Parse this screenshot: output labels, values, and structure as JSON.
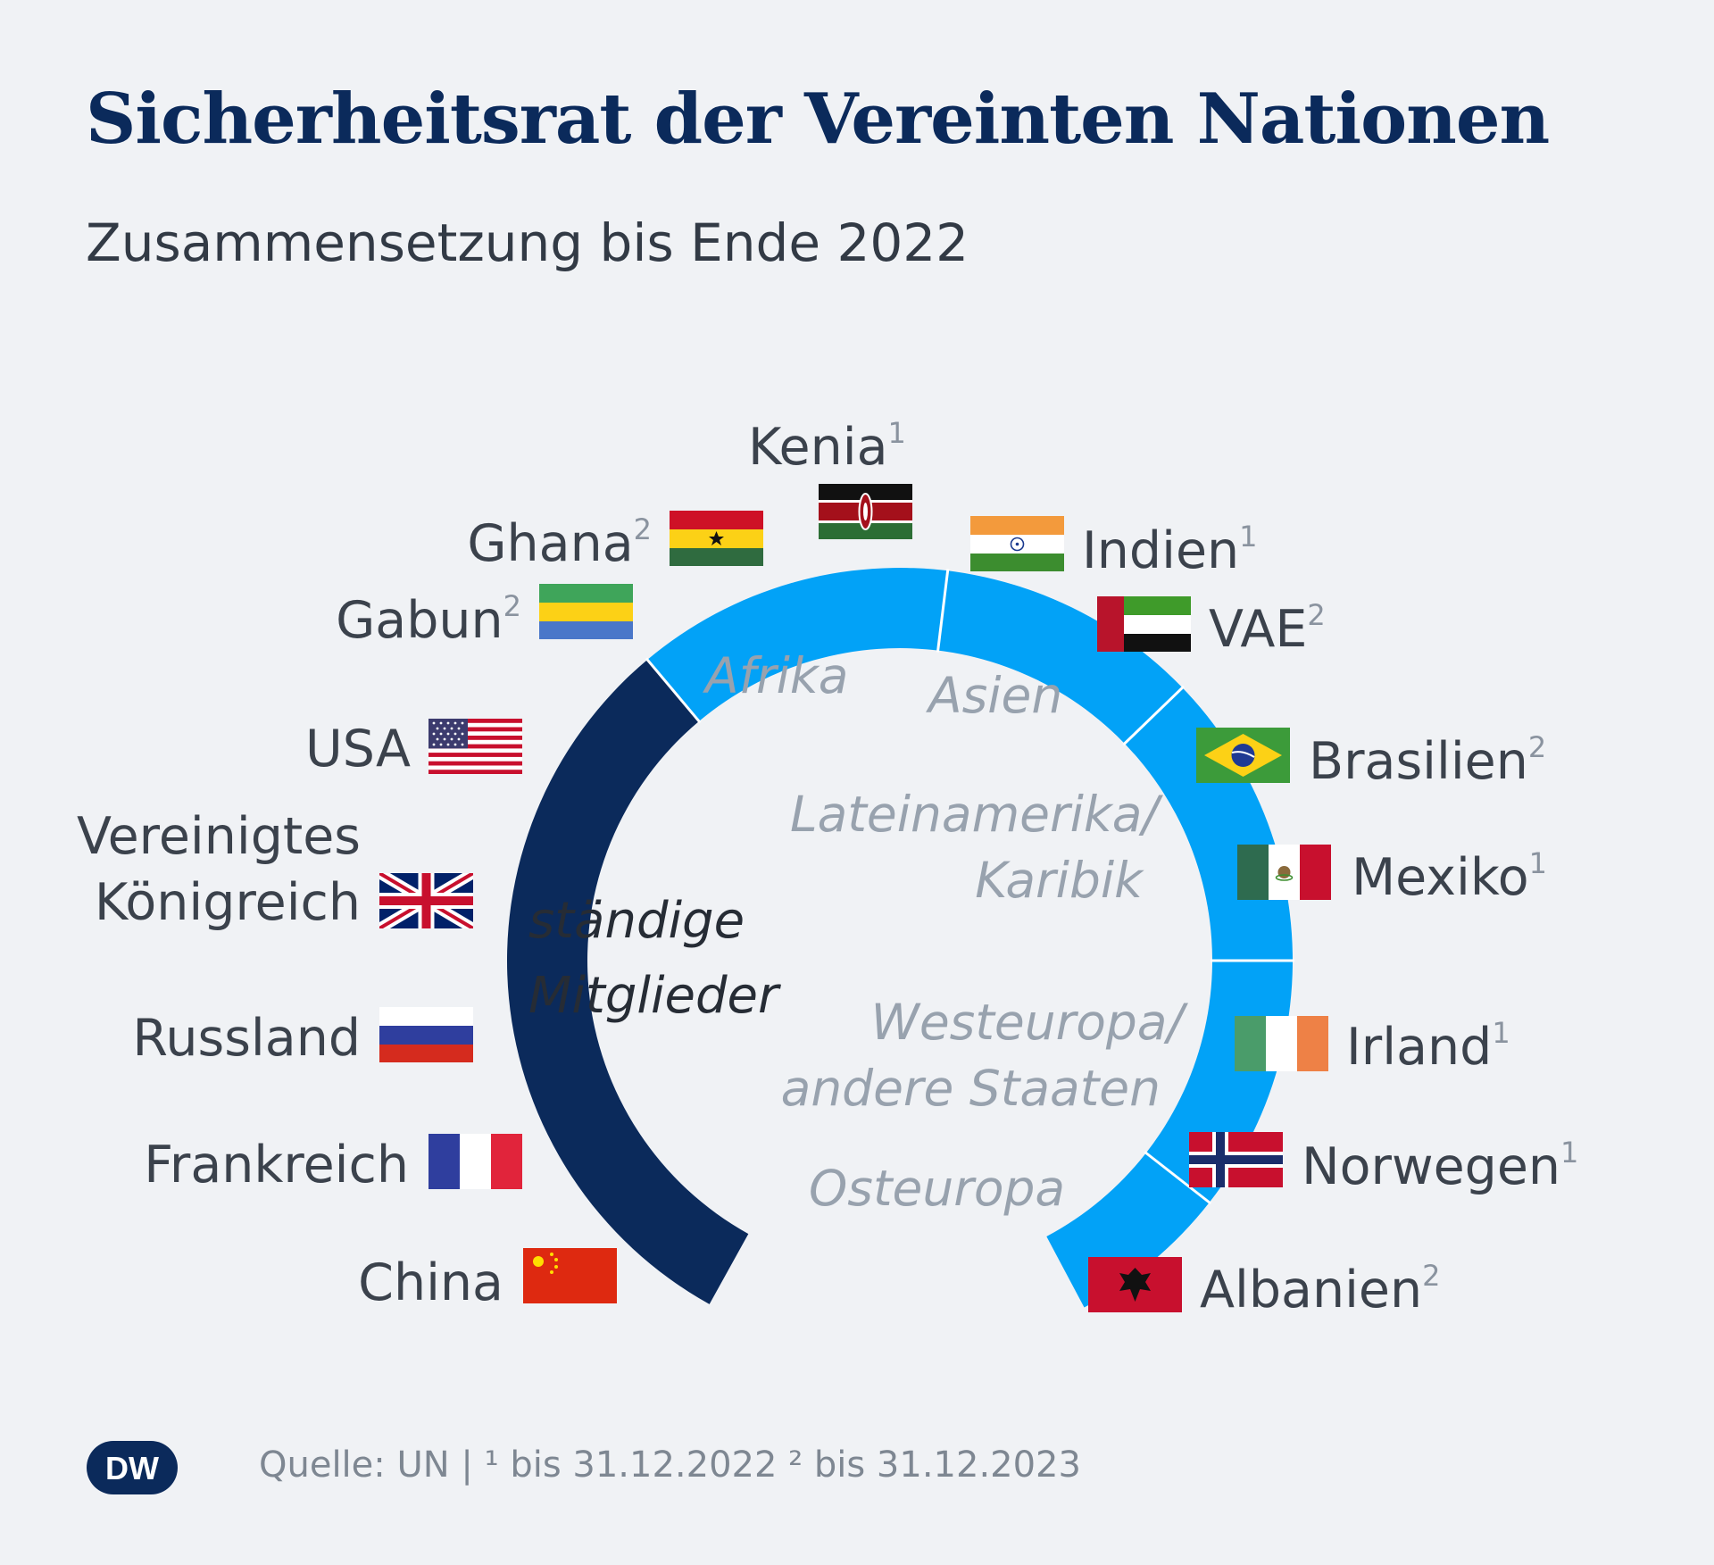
{
  "title": "Sicherheitsrat der Vereinten Nationen",
  "subtitle": "Zusammensetzung bis Ende 2022",
  "colors": {
    "permanent": "#0b2a5b",
    "elected": "#02a2f7",
    "title": "#0b2a5b"
  },
  "permanent_group_label": [
    "ständige",
    "Mitglieder"
  ],
  "regions": {
    "afrika": "Afrika",
    "asien": "Asien",
    "latam": [
      "Lateinamerika/",
      "Karibik"
    ],
    "westeuropa": [
      "Westeuropa/",
      "andere Staaten"
    ],
    "osteuropa": "Osteuropa"
  },
  "permanent_members": [
    {
      "name": "USA",
      "flag": "us-flag-icon"
    },
    {
      "name": [
        "Vereinigtes",
        "Königreich"
      ],
      "flag": "uk-flag-icon"
    },
    {
      "name": "Russland",
      "flag": "russia-flag-icon"
    },
    {
      "name": "Frankreich",
      "flag": "france-flag-icon"
    },
    {
      "name": "China",
      "flag": "china-flag-icon"
    }
  ],
  "elected_members": [
    {
      "name": "Gabun",
      "note": "2",
      "region": "Afrika",
      "flag": "gabon-flag-icon"
    },
    {
      "name": "Ghana",
      "note": "2",
      "region": "Afrika",
      "flag": "ghana-flag-icon"
    },
    {
      "name": "Kenia",
      "note": "1",
      "region": "Afrika",
      "flag": "kenya-flag-icon"
    },
    {
      "name": "Indien",
      "note": "1",
      "region": "Asien",
      "flag": "india-flag-icon"
    },
    {
      "name": "VAE",
      "note": "2",
      "region": "Asien",
      "flag": "uae-flag-icon"
    },
    {
      "name": "Brasilien",
      "note": "2",
      "region": "Lateinamerika/Karibik",
      "flag": "brazil-flag-icon"
    },
    {
      "name": "Mexiko",
      "note": "1",
      "region": "Lateinamerika/Karibik",
      "flag": "mexico-flag-icon"
    },
    {
      "name": "Irland",
      "note": "1",
      "region": "Westeuropa/andere Staaten",
      "flag": "ireland-flag-icon"
    },
    {
      "name": "Norwegen",
      "note": "1",
      "region": "Westeuropa/andere Staaten",
      "flag": "norway-flag-icon"
    },
    {
      "name": "Albanien",
      "note": "2",
      "region": "Osteuropa",
      "flag": "albania-flag-icon"
    }
  ],
  "source": "Quelle: UN | ¹ bis 31.12.2022 ² bis 31.12.2023",
  "logo_text": "DW"
}
